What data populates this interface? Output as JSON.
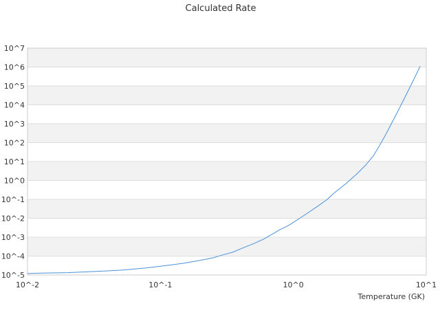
{
  "chart_data": {
    "type": "line",
    "title": "Calculated Rate",
    "xlabel": "Temperature (GK)",
    "ylabel": "",
    "x_scale": "log",
    "y_scale": "log",
    "xlim": [
      0.01,
      10
    ],
    "ylim": [
      1e-05,
      10000000
    ],
    "x_ticks": [
      {
        "value": 0.01,
        "label": "10^-2"
      },
      {
        "value": 0.1,
        "label": "10^-1"
      },
      {
        "value": 1,
        "label": "10^0"
      },
      {
        "value": 10,
        "label": "10^1"
      }
    ],
    "y_ticks": [
      {
        "value": 1e-05,
        "label": "10^-5"
      },
      {
        "value": 0.0001,
        "label": "10^-4"
      },
      {
        "value": 0.001,
        "label": "10^-3"
      },
      {
        "value": 0.01,
        "label": "10^-2"
      },
      {
        "value": 0.1,
        "label": "10^-1"
      },
      {
        "value": 1,
        "label": "10^0"
      },
      {
        "value": 10,
        "label": "10^1"
      },
      {
        "value": 100,
        "label": "10^2"
      },
      {
        "value": 1000,
        "label": "10^3"
      },
      {
        "value": 10000,
        "label": "10^4"
      },
      {
        "value": 100000,
        "label": "10^5"
      },
      {
        "value": 1000000,
        "label": "10^6"
      },
      {
        "value": 10000000,
        "label": "10^7"
      }
    ],
    "grid": "horizontal alternating bands",
    "legend": "none",
    "colors": {
      "line": "#4a90d9",
      "band": "#f2f2f2",
      "grid": "#dddddd",
      "axis": "#cccccc"
    },
    "series": [
      {
        "x": [
          0.01,
          0.012,
          0.015,
          0.02,
          0.025,
          0.03,
          0.04,
          0.05,
          0.06,
          0.08,
          0.1,
          0.12,
          0.15,
          0.2,
          0.25,
          0.3,
          0.35,
          0.4,
          0.5,
          0.6,
          0.7,
          0.8,
          0.9,
          1.0,
          1.2,
          1.5,
          1.8,
          2.0,
          2.5,
          3.0,
          3.5,
          4.0,
          4.5,
          5.0,
          5.5,
          6.0,
          7.0,
          8.0,
          9.0
        ],
        "y": [
          1.2e-05,
          1.25e-05,
          1.28e-05,
          1.32e-05,
          1.42e-05,
          1.5e-05,
          1.65e-05,
          1.8e-05,
          2e-05,
          2.4e-05,
          2.9e-05,
          3.4e-05,
          4.2e-05,
          6e-05,
          8.2e-05,
          0.00012,
          0.00016,
          0.00024,
          0.00045,
          0.0008,
          0.0015,
          0.0026,
          0.0038,
          0.006,
          0.014,
          0.04,
          0.1,
          0.2,
          0.7,
          2.2,
          6.5,
          20,
          80,
          300,
          1100,
          3500,
          30000,
          200000,
          1100000
        ]
      }
    ]
  }
}
